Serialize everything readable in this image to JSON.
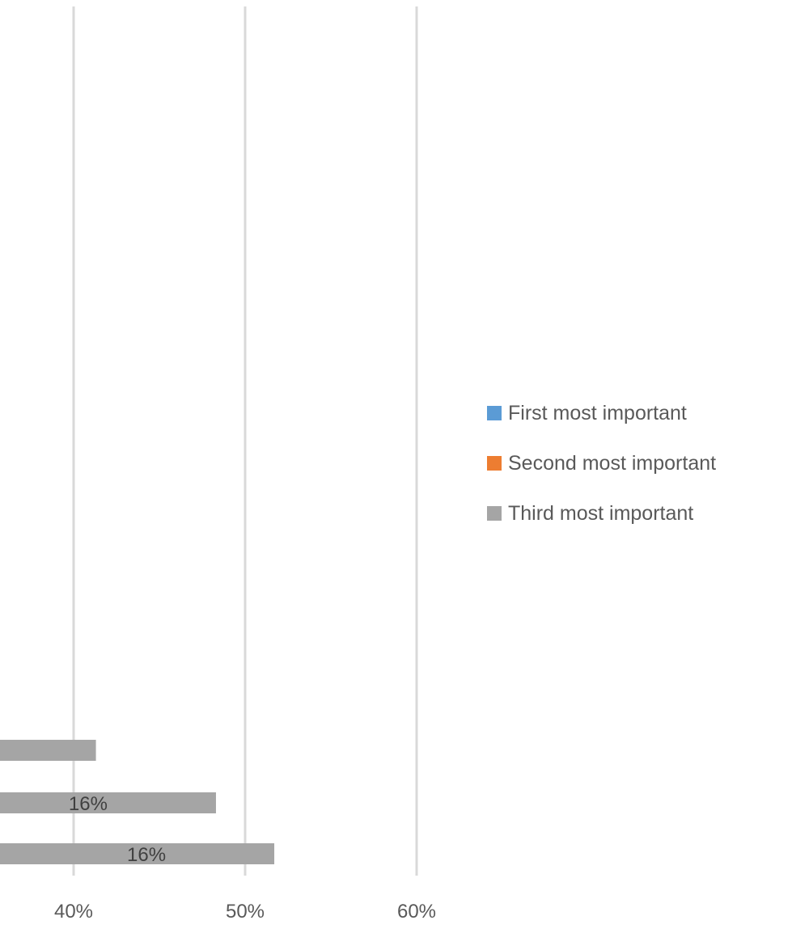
{
  "chart_data": {
    "type": "bar",
    "orientation": "horizontal",
    "stacked": true,
    "title": "",
    "xlabel": "",
    "ylabel": "",
    "xlim": [
      0,
      60
    ],
    "x_ticks": [
      {
        "value": 40,
        "label": "40%"
      },
      {
        "value": 50,
        "label": "50%"
      },
      {
        "value": 60,
        "label": "60%"
      }
    ],
    "grid": true,
    "legend_position": "right",
    "series": [
      {
        "name": "First most important",
        "color": "#5B9BD5"
      },
      {
        "name": "Second most important",
        "color": "#ED7D31"
      },
      {
        "name": "Third most important",
        "color": "#A5A5A5"
      }
    ],
    "visible_bars": [
      {
        "series": "Third most important",
        "end": 41.3,
        "label": ""
      },
      {
        "series": "Third most important",
        "end": 48.3,
        "label": "16%"
      },
      {
        "series": "Third most important",
        "end": 51.7,
        "label": "16%"
      }
    ]
  }
}
